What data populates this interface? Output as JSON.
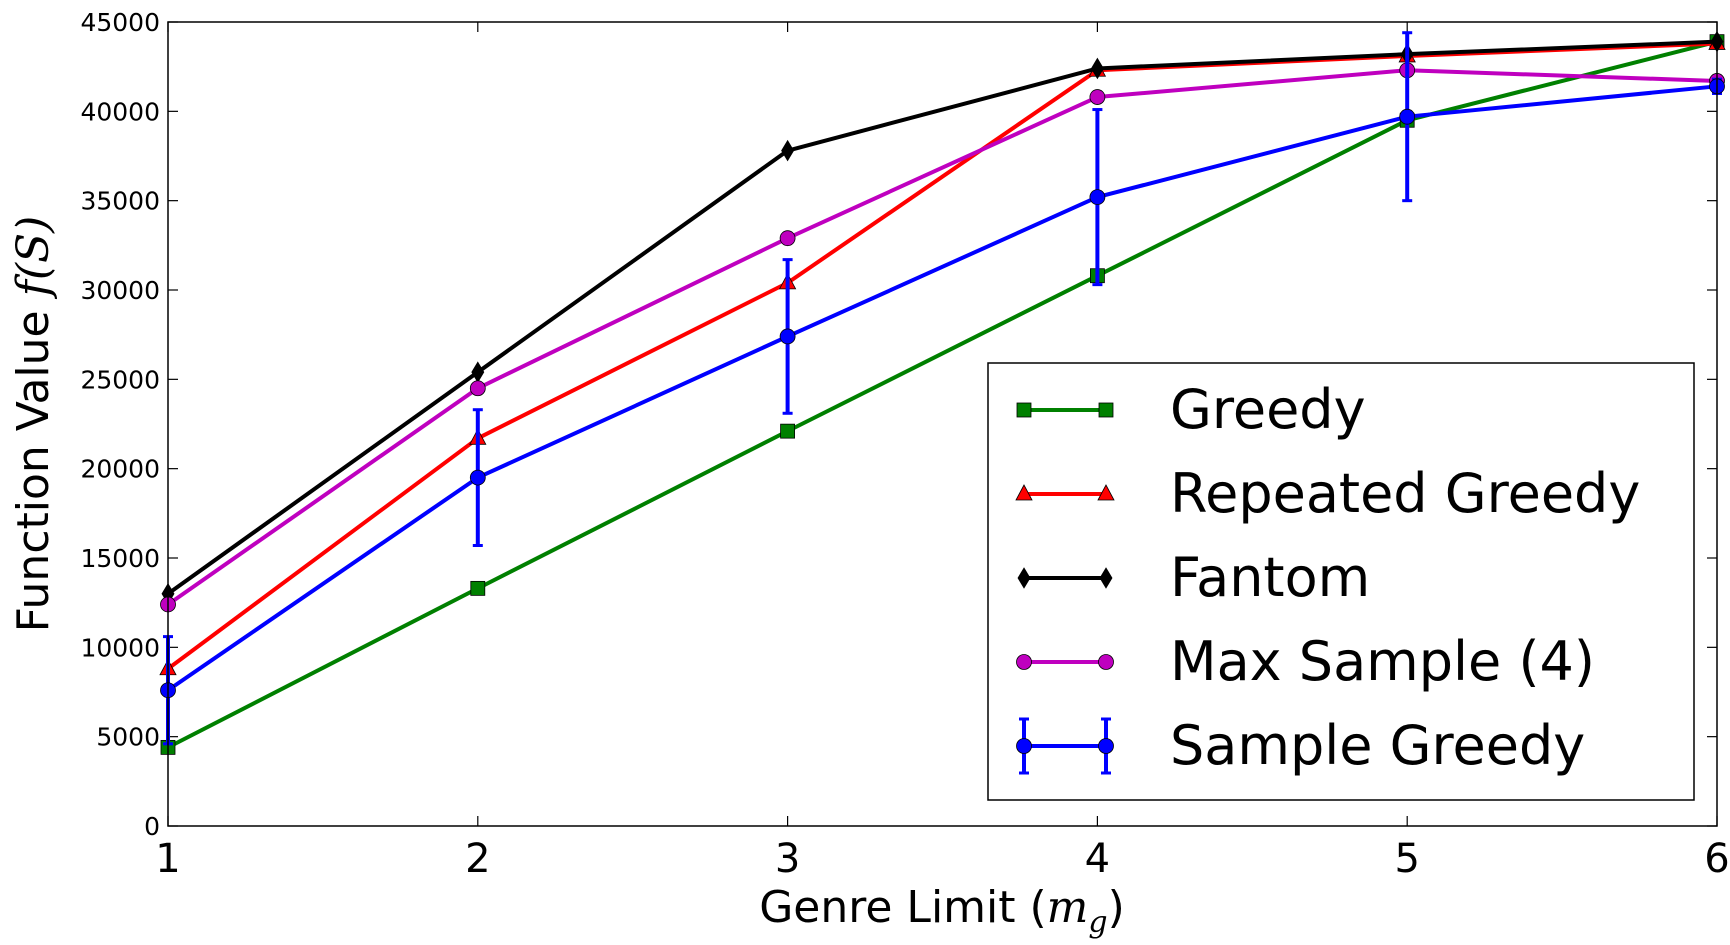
{
  "chart_data": {
    "type": "line",
    "xlabel": "Genre Limit (",
    "xlabel_math_base": "m",
    "xlabel_math_sub": "g",
    "xlabel_close": ")",
    "ylabel": "Function Value ",
    "ylabel_math": "f(S)",
    "xlim": [
      1,
      6
    ],
    "ylim": [
      0,
      45000
    ],
    "x_ticks": [
      "1",
      "2",
      "3",
      "4",
      "5",
      "6"
    ],
    "y_ticks": [
      "0",
      "5000",
      "10000",
      "15000",
      "20000",
      "25000",
      "30000",
      "35000",
      "40000",
      "45000"
    ],
    "grid": false,
    "legend_position": "lower-right",
    "x": [
      1,
      2,
      3,
      4,
      5,
      6
    ],
    "series": [
      {
        "name": "Greedy",
        "color": "#008000",
        "marker": "square",
        "values": [
          4400,
          13300,
          22100,
          30800,
          39500,
          43900
        ]
      },
      {
        "name": "Repeated Greedy",
        "color": "#ff0000",
        "marker": "triangle",
        "values": [
          8800,
          21700,
          30400,
          42300,
          43100,
          43800
        ]
      },
      {
        "name": "Fantom",
        "color": "#000000",
        "marker": "diamond",
        "values": [
          13000,
          25400,
          37800,
          42400,
          43200,
          43900
        ]
      },
      {
        "name": "Max Sample (4)",
        "color": "#bf00bf",
        "marker": "circle",
        "values": [
          12400,
          24500,
          32900,
          40800,
          42300,
          41700
        ]
      },
      {
        "name": "Sample Greedy",
        "color": "#0000ff",
        "marker": "circle",
        "values": [
          7600,
          19500,
          27400,
          35200,
          39700,
          41400
        ],
        "error": [
          3000,
          3800,
          4300,
          4900,
          4700,
          400
        ]
      }
    ]
  }
}
